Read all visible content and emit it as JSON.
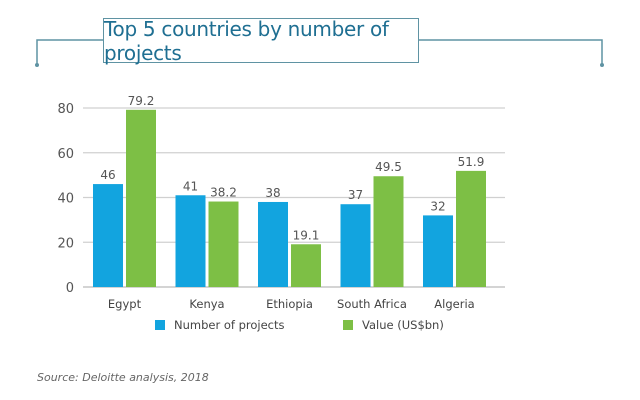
{
  "chart_data": {
    "type": "bar",
    "title": "Top 5 countries by number of projects",
    "categories": [
      "Egypt",
      "Kenya",
      "Ethiopia",
      "South Africa",
      "Algeria"
    ],
    "series": [
      {
        "name": "Number of projects",
        "values": [
          46,
          41,
          38,
          37,
          32
        ],
        "color": "#12a4df"
      },
      {
        "name": "Value (US$bn)",
        "values": [
          79.2,
          38.2,
          19.1,
          49.5,
          51.9
        ],
        "color": "#7dbf45"
      }
    ],
    "yticks": [
      0,
      20,
      40,
      60,
      80
    ],
    "ylim": [
      0,
      80
    ],
    "grid": true,
    "legend": "bottom",
    "source": "Source: Deloitte analysis, 2018"
  }
}
